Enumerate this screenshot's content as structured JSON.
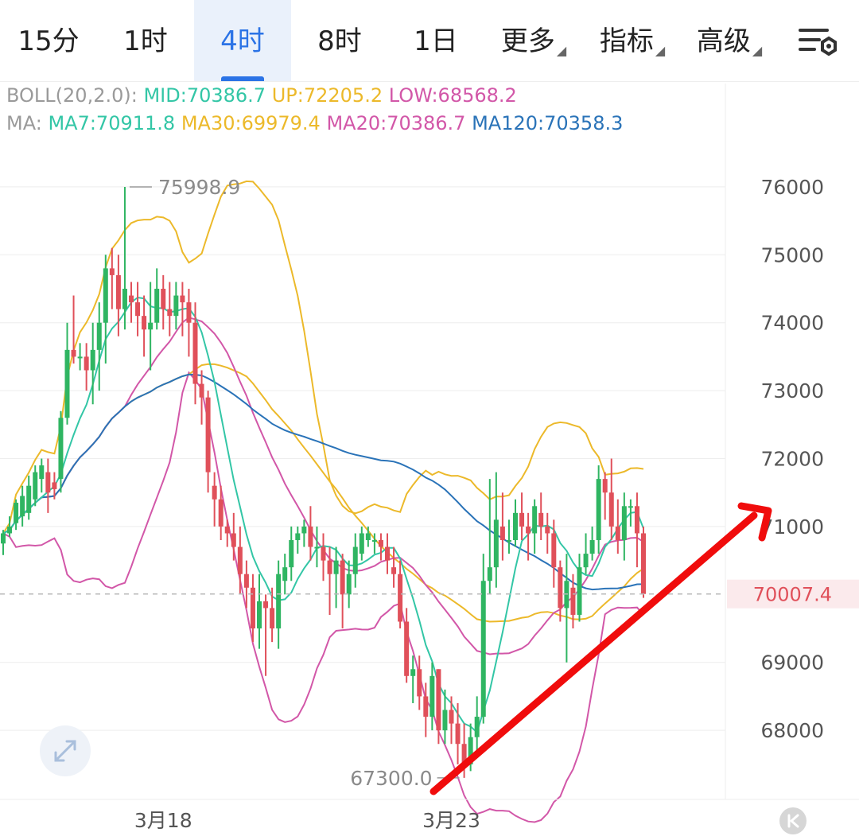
{
  "tabs": [
    {
      "label": "15分",
      "active": false,
      "caret": false
    },
    {
      "label": "1时",
      "active": false,
      "caret": false
    },
    {
      "label": "4时",
      "active": true,
      "caret": false
    },
    {
      "label": "8时",
      "active": false,
      "caret": false
    },
    {
      "label": "1日",
      "active": false,
      "caret": false
    },
    {
      "label": "更多",
      "active": false,
      "caret": true
    },
    {
      "label": "指标",
      "active": false,
      "caret": true
    },
    {
      "label": "高级",
      "active": false,
      "caret": true
    }
  ],
  "settings_icon": "chart-settings-icon",
  "legend": {
    "boll": {
      "name": "BOLL(20,2.0):",
      "mid_label": "MID:70386.7",
      "up_label": "UP:72205.2",
      "low_label": "LOW:68568.2"
    },
    "ma": {
      "name": "MA:",
      "ma7_label": "MA7:70911.8",
      "ma30_label": "MA30:69979.4",
      "ma20_label": "MA20:70386.7",
      "ma120_label": "MA120:70358.3"
    }
  },
  "colors": {
    "up": "#2fb562",
    "down": "#e0505a",
    "ma7": "#33c6a6",
    "ma30": "#ecb92a",
    "ma20": "#d257a8",
    "ma120": "#2a73b8",
    "boll_up": "#ecb92a",
    "boll_low": "#d257a8",
    "arrow": "#f00c0c",
    "last_price": "#e0505a",
    "grid": "#eeeeee",
    "axis_text": "#555555"
  },
  "chart_data": {
    "type": "candlestick",
    "interval": "4时",
    "y_axis_ticks": [
      76000,
      75000,
      74000,
      73000,
      72000,
      71000,
      69000,
      68000
    ],
    "ylim": [
      67100,
      76350
    ],
    "x_tick_labels": [
      {
        "label": "3月18",
        "index": 25
      },
      {
        "label": "3月23",
        "index": 70
      }
    ],
    "last_price": 70007.4,
    "last_price_label": "70007.4",
    "high_marker": {
      "label": "75998.9",
      "value": 75998.9,
      "index": 19
    },
    "low_marker": {
      "label": "67300.0",
      "value": 67300.0,
      "index": 72
    },
    "candles": [
      [
        70750,
        70900,
        70580,
        70950
      ],
      [
        70900,
        71000,
        70850,
        71150
      ],
      [
        71050,
        71350,
        70950,
        71400
      ],
      [
        71150,
        71450,
        71000,
        71600
      ],
      [
        71200,
        71600,
        71100,
        71750
      ],
      [
        71400,
        71800,
        71300,
        71900
      ],
      [
        71700,
        71900,
        71500,
        72000
      ],
      [
        71800,
        71500,
        71200,
        72000
      ],
      [
        71650,
        71550,
        71400,
        71800
      ],
      [
        71700,
        72600,
        71500,
        72700
      ],
      [
        72600,
        73600,
        72500,
        74000
      ],
      [
        73600,
        73500,
        73400,
        74400
      ],
      [
        73500,
        73500,
        73300,
        73700
      ],
      [
        73500,
        73300,
        73000,
        73700
      ],
      [
        73300,
        73600,
        72800,
        74000
      ],
      [
        73600,
        74000,
        73000,
        74300
      ],
      [
        74000,
        74800,
        73400,
        75000
      ],
      [
        74800,
        74700,
        74200,
        75100
      ],
      [
        74700,
        74200,
        73800,
        75000
      ],
      [
        74200,
        74500,
        73900,
        75998.9
      ],
      [
        74400,
        74300,
        74000,
        74600
      ],
      [
        74300,
        74100,
        73800,
        74600
      ],
      [
        74100,
        73900,
        73500,
        74400
      ],
      [
        73900,
        74000,
        73300,
        74600
      ],
      [
        74000,
        74500,
        73900,
        74800
      ],
      [
        74500,
        74200,
        73900,
        74700
      ],
      [
        74200,
        74100,
        73800,
        74600
      ],
      [
        74100,
        74400,
        73900,
        74600
      ],
      [
        74400,
        74300,
        73800,
        74600
      ],
      [
        74300,
        74000,
        73500,
        74500
      ],
      [
        74000,
        73100,
        72800,
        74300
      ],
      [
        73100,
        72900,
        72500,
        73300
      ],
      [
        72900,
        71800,
        71500,
        73000
      ],
      [
        71600,
        71400,
        71000,
        71800
      ],
      [
        71400,
        71000,
        70800,
        71600
      ],
      [
        71000,
        70900,
        70700,
        71100
      ],
      [
        70900,
        70700,
        70500,
        71200
      ],
      [
        70700,
        70300,
        70000,
        71000
      ],
      [
        70300,
        70100,
        69800,
        70500
      ],
      [
        70100,
        69500,
        69300,
        70300
      ],
      [
        69500,
        69900,
        69200,
        70300
      ],
      [
        69900,
        69800,
        68800,
        70000
      ],
      [
        69800,
        69500,
        69300,
        70100
      ],
      [
        69500,
        70300,
        69200,
        70500
      ],
      [
        70200,
        70400,
        70000,
        70600
      ],
      [
        70400,
        70800,
        70200,
        71000
      ],
      [
        70800,
        70900,
        70600,
        71000
      ],
      [
        70900,
        71000,
        70700,
        71100
      ],
      [
        71000,
        70700,
        70500,
        71300
      ],
      [
        70700,
        70700,
        70400,
        71000
      ],
      [
        70700,
        70500,
        70200,
        70900
      ],
      [
        70500,
        70300,
        69700,
        70700
      ],
      [
        70300,
        70500,
        69800,
        70700
      ],
      [
        70500,
        70000,
        69500,
        70600
      ],
      [
        70000,
        70300,
        69800,
        70500
      ],
      [
        70300,
        70700,
        70100,
        70900
      ],
      [
        70600,
        70900,
        70500,
        71000
      ],
      [
        70800,
        70900,
        70700,
        71000
      ],
      [
        70800,
        70800,
        70600,
        70900
      ],
      [
        70800,
        70700,
        70500,
        70900
      ],
      [
        70700,
        70500,
        70300,
        70900
      ],
      [
        70400,
        70300,
        70100,
        70700
      ],
      [
        70300,
        69600,
        69500,
        70500
      ],
      [
        69600,
        68800,
        68700,
        69800
      ],
      [
        68800,
        68900,
        68400,
        69100
      ],
      [
        68900,
        68500,
        68300,
        69100
      ],
      [
        68500,
        68200,
        67900,
        68700
      ],
      [
        68200,
        68800,
        68000,
        69000
      ],
      [
        68900,
        68000,
        67800,
        68900
      ],
      [
        68000,
        68300,
        67800,
        68600
      ],
      [
        68300,
        68100,
        67800,
        68500
      ],
      [
        68100,
        67800,
        67500,
        68400
      ],
      [
        67800,
        67500,
        67300,
        68100
      ],
      [
        67500,
        67900,
        67400,
        68100
      ],
      [
        67900,
        68200,
        67600,
        68500
      ],
      [
        68200,
        70200,
        68100,
        70600
      ],
      [
        70200,
        70400,
        70000,
        71700
      ],
      [
        70400,
        71100,
        70100,
        71800
      ],
      [
        71000,
        70800,
        70500,
        71500
      ],
      [
        70800,
        70800,
        70600,
        71100
      ],
      [
        70800,
        71200,
        70700,
        71400
      ],
      [
        71200,
        71000,
        70800,
        71500
      ],
      [
        71000,
        70900,
        70500,
        71200
      ],
      [
        70900,
        71300,
        70600,
        71400
      ],
      [
        71200,
        71000,
        70800,
        71500
      ],
      [
        71000,
        70900,
        70600,
        71200
      ],
      [
        70900,
        70400,
        70100,
        71100
      ],
      [
        70400,
        69800,
        69600,
        70500
      ],
      [
        69800,
        70200,
        69000,
        70600
      ],
      [
        70100,
        69700,
        69500,
        70300
      ],
      [
        69700,
        70400,
        69600,
        70600
      ],
      [
        70400,
        70600,
        70300,
        70900
      ],
      [
        70600,
        70800,
        70500,
        71000
      ],
      [
        70800,
        71700,
        70600,
        71900
      ],
      [
        71700,
        71500,
        71100,
        71800
      ],
      [
        71500,
        71000,
        70800,
        72000
      ],
      [
        71000,
        70800,
        70600,
        71400
      ],
      [
        70800,
        71300,
        70500,
        71500
      ],
      [
        71300,
        71300,
        71000,
        71400
      ],
      [
        71300,
        70900,
        70400,
        71500
      ],
      [
        70900,
        70007.4,
        69950,
        71000
      ]
    ]
  }
}
